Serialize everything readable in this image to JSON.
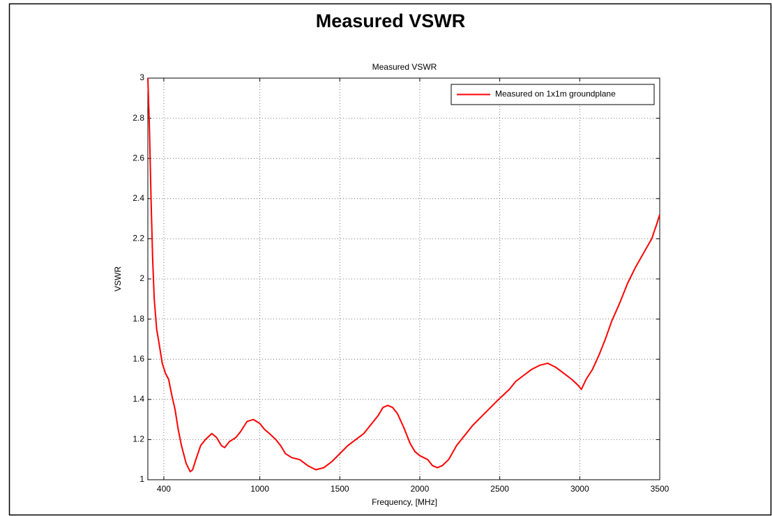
{
  "heading": "Measured VSWR",
  "chart_data": {
    "type": "line",
    "title": "Measured VSWR",
    "x_label": "Frequency, [MHz]",
    "y_label": "VSWR",
    "x": [
      300,
      310,
      320,
      330,
      340,
      355,
      370,
      390,
      410,
      430,
      450,
      470,
      490,
      510,
      540,
      565,
      580,
      600,
      630,
      660,
      700,
      730,
      760,
      780,
      810,
      850,
      880,
      920,
      960,
      1000,
      1030,
      1060,
      1100,
      1130,
      1160,
      1200,
      1250,
      1300,
      1350,
      1400,
      1450,
      1500,
      1550,
      1600,
      1650,
      1700,
      1740,
      1770,
      1800,
      1830,
      1860,
      1900,
      1940,
      1970,
      2000,
      2050,
      2080,
      2110,
      2140,
      2180,
      2230,
      2280,
      2330,
      2380,
      2430,
      2480,
      2520,
      2560,
      2600,
      2650,
      2700,
      2750,
      2800,
      2850,
      2900,
      2950,
      2990,
      3010,
      3040,
      3080,
      3120,
      3160,
      3200,
      3250,
      3300,
      3350,
      3400,
      3450,
      3480,
      3500
    ],
    "series": [
      {
        "name": "Measured on 1x1m groundplane",
        "color": "#ff0000",
        "values": [
          3.0,
          2.75,
          2.4,
          2.1,
          1.9,
          1.75,
          1.68,
          1.58,
          1.53,
          1.5,
          1.42,
          1.35,
          1.25,
          1.17,
          1.08,
          1.04,
          1.05,
          1.1,
          1.17,
          1.2,
          1.23,
          1.21,
          1.17,
          1.16,
          1.19,
          1.21,
          1.24,
          1.29,
          1.3,
          1.28,
          1.25,
          1.23,
          1.2,
          1.17,
          1.13,
          1.11,
          1.1,
          1.07,
          1.05,
          1.06,
          1.09,
          1.13,
          1.17,
          1.2,
          1.23,
          1.28,
          1.32,
          1.36,
          1.37,
          1.36,
          1.33,
          1.26,
          1.18,
          1.14,
          1.12,
          1.1,
          1.07,
          1.06,
          1.07,
          1.1,
          1.17,
          1.22,
          1.27,
          1.31,
          1.35,
          1.39,
          1.42,
          1.45,
          1.49,
          1.52,
          1.55,
          1.57,
          1.58,
          1.56,
          1.53,
          1.5,
          1.47,
          1.45,
          1.5,
          1.55,
          1.62,
          1.7,
          1.79,
          1.88,
          1.98,
          2.06,
          2.13,
          2.2,
          2.27,
          2.32
        ]
      }
    ],
    "xlim": [
      300,
      3500
    ],
    "ylim": [
      1,
      3
    ],
    "xticks": [
      400,
      1000,
      1500,
      2000,
      2500,
      3000,
      3500
    ],
    "yticks": [
      1,
      1.2,
      1.4,
      1.6,
      1.8,
      2,
      2.2,
      2.4,
      2.6,
      2.8,
      3
    ],
    "grid": true,
    "legend": "upper right"
  }
}
